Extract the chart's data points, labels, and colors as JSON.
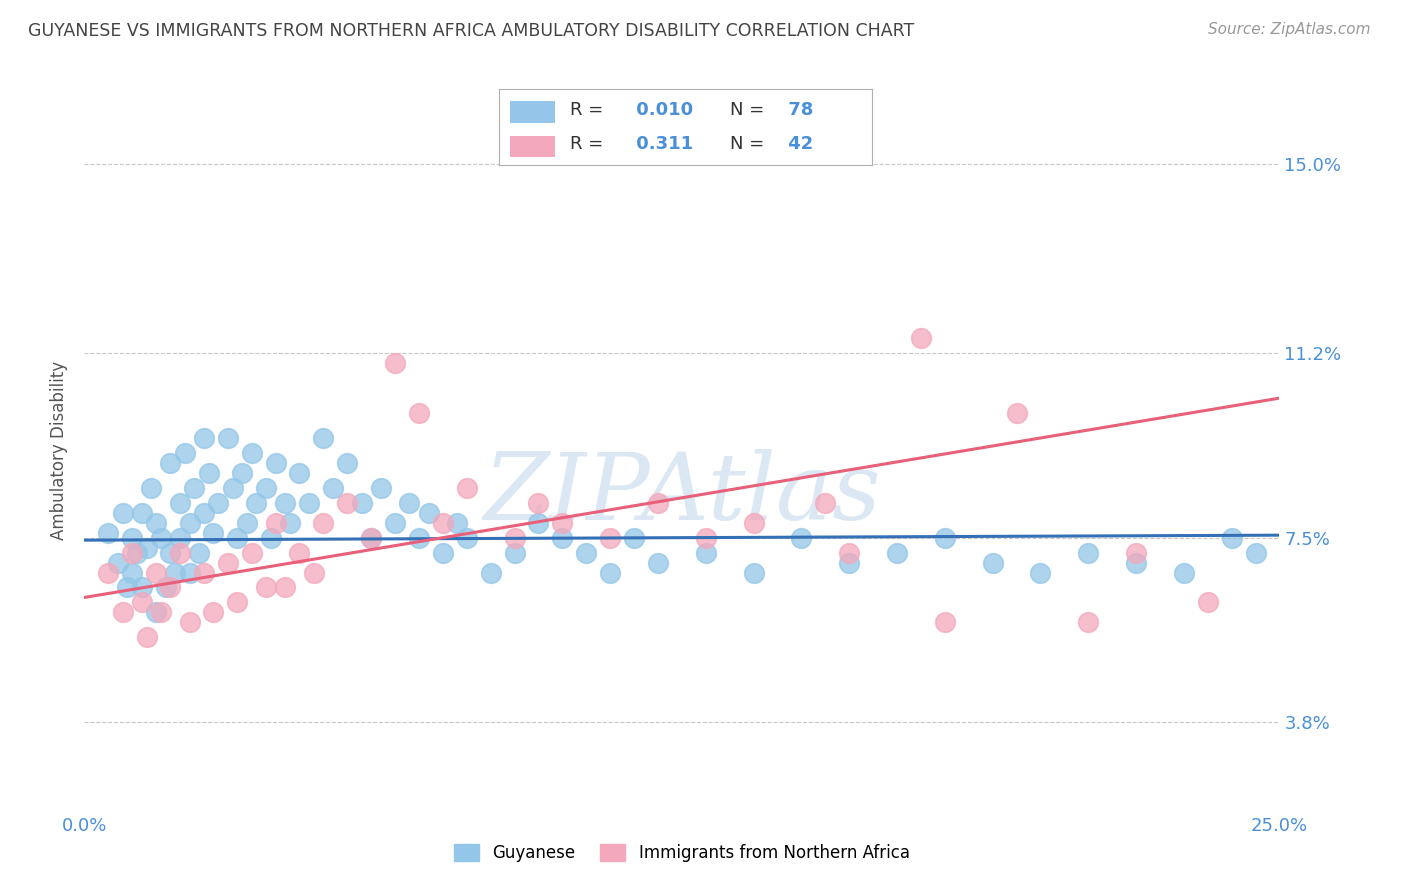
{
  "title": "GUYANESE VS IMMIGRANTS FROM NORTHERN AFRICA AMBULATORY DISABILITY CORRELATION CHART",
  "source": "Source: ZipAtlas.com",
  "ylabel": "Ambulatory Disability",
  "xlim": [
    0.0,
    0.25
  ],
  "ylim": [
    0.02,
    0.165
  ],
  "xticks": [
    0.0,
    0.05,
    0.1,
    0.15,
    0.2,
    0.25
  ],
  "xticklabels": [
    "0.0%",
    "",
    "",
    "",
    "",
    "25.0%"
  ],
  "ytick_positions": [
    0.038,
    0.075,
    0.112,
    0.15
  ],
  "ytick_labels": [
    "3.8%",
    "7.5%",
    "11.2%",
    "15.0%"
  ],
  "blue_R": 0.01,
  "blue_N": 78,
  "pink_R": 0.311,
  "pink_N": 42,
  "blue_label": "Guyanese",
  "pink_label": "Immigrants from Northern Africa",
  "blue_color": "#93c6e8",
  "pink_color": "#f4a8bb",
  "blue_line_color": "#3470b5",
  "pink_line_color": "#e8607a",
  "background_color": "#ffffff",
  "grid_color": "#c8c8c8",
  "title_color": "#444444",
  "axis_color": "#4a90d9",
  "watermark": "ZIPAtlas",
  "blue_x": [
    0.005,
    0.007,
    0.008,
    0.009,
    0.01,
    0.01,
    0.011,
    0.012,
    0.012,
    0.013,
    0.014,
    0.015,
    0.015,
    0.016,
    0.017,
    0.018,
    0.018,
    0.019,
    0.02,
    0.02,
    0.021,
    0.022,
    0.022,
    0.023,
    0.024,
    0.025,
    0.025,
    0.026,
    0.027,
    0.028,
    0.03,
    0.031,
    0.032,
    0.033,
    0.034,
    0.035,
    0.036,
    0.038,
    0.039,
    0.04,
    0.042,
    0.043,
    0.045,
    0.047,
    0.05,
    0.052,
    0.055,
    0.058,
    0.06,
    0.062,
    0.065,
    0.068,
    0.07,
    0.072,
    0.075,
    0.078,
    0.08,
    0.085,
    0.09,
    0.095,
    0.1,
    0.105,
    0.11,
    0.115,
    0.12,
    0.13,
    0.14,
    0.15,
    0.16,
    0.17,
    0.18,
    0.19,
    0.2,
    0.21,
    0.22,
    0.23,
    0.24,
    0.245
  ],
  "blue_y": [
    0.076,
    0.07,
    0.08,
    0.065,
    0.075,
    0.068,
    0.072,
    0.08,
    0.065,
    0.073,
    0.085,
    0.078,
    0.06,
    0.075,
    0.065,
    0.09,
    0.072,
    0.068,
    0.082,
    0.075,
    0.092,
    0.078,
    0.068,
    0.085,
    0.072,
    0.095,
    0.08,
    0.088,
    0.076,
    0.082,
    0.095,
    0.085,
    0.075,
    0.088,
    0.078,
    0.092,
    0.082,
    0.085,
    0.075,
    0.09,
    0.082,
    0.078,
    0.088,
    0.082,
    0.095,
    0.085,
    0.09,
    0.082,
    0.075,
    0.085,
    0.078,
    0.082,
    0.075,
    0.08,
    0.072,
    0.078,
    0.075,
    0.068,
    0.072,
    0.078,
    0.075,
    0.072,
    0.068,
    0.075,
    0.07,
    0.072,
    0.068,
    0.075,
    0.07,
    0.072,
    0.075,
    0.07,
    0.068,
    0.072,
    0.07,
    0.068,
    0.075,
    0.072
  ],
  "pink_x": [
    0.005,
    0.008,
    0.01,
    0.012,
    0.013,
    0.015,
    0.016,
    0.018,
    0.02,
    0.022,
    0.025,
    0.027,
    0.03,
    0.032,
    0.035,
    0.038,
    0.04,
    0.042,
    0.045,
    0.048,
    0.05,
    0.055,
    0.06,
    0.065,
    0.07,
    0.075,
    0.08,
    0.09,
    0.095,
    0.1,
    0.11,
    0.12,
    0.13,
    0.14,
    0.155,
    0.16,
    0.175,
    0.18,
    0.195,
    0.21,
    0.22,
    0.235
  ],
  "pink_y": [
    0.068,
    0.06,
    0.072,
    0.062,
    0.055,
    0.068,
    0.06,
    0.065,
    0.072,
    0.058,
    0.068,
    0.06,
    0.07,
    0.062,
    0.072,
    0.065,
    0.078,
    0.065,
    0.072,
    0.068,
    0.078,
    0.082,
    0.075,
    0.11,
    0.1,
    0.078,
    0.085,
    0.075,
    0.082,
    0.078,
    0.075,
    0.082,
    0.075,
    0.078,
    0.082,
    0.072,
    0.115,
    0.058,
    0.1,
    0.058,
    0.072,
    0.062
  ]
}
